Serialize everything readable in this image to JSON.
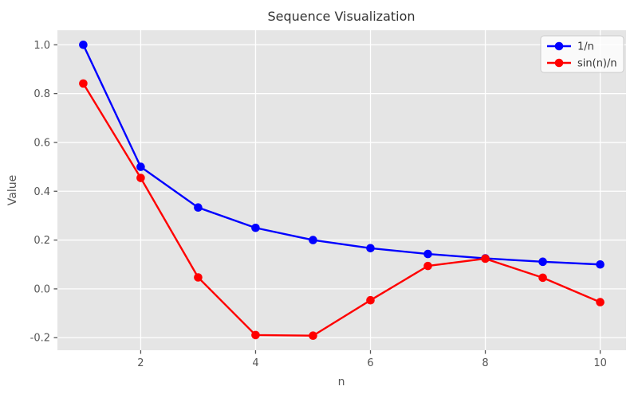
{
  "chart_data": {
    "type": "line",
    "title": "Sequence Visualization",
    "xlabel": "n",
    "ylabel": "Value",
    "x": [
      1,
      2,
      3,
      4,
      5,
      6,
      7,
      8,
      9,
      10
    ],
    "series": [
      {
        "name": "1/n",
        "color": "#0000ff",
        "values": [
          1.0,
          0.5,
          0.3333,
          0.25,
          0.2,
          0.1667,
          0.1429,
          0.125,
          0.1111,
          0.1
        ]
      },
      {
        "name": "sin(n)/n",
        "color": "#ff0000",
        "values": [
          0.8415,
          0.4546,
          0.047,
          -0.1892,
          -0.1918,
          -0.0466,
          0.0939,
          0.1237,
          0.0458,
          -0.0544
        ]
      }
    ],
    "x_ticks": [
      2,
      4,
      6,
      8,
      10
    ],
    "y_ticks": [
      -0.2,
      0.0,
      0.2,
      0.4,
      0.6,
      0.8,
      1.0
    ],
    "xlim": [
      0.55,
      10.45
    ],
    "ylim": [
      -0.2514,
      1.0596
    ],
    "grid": true,
    "legend_position": "upper right",
    "style": {
      "figure_bg": "#ffffff",
      "plot_bg": "#e5e5e5",
      "grid_color": "#ffffff",
      "tick_color": "#555555",
      "text_color": "#555555",
      "title_color": "#333333",
      "legend_bg": "rgba(255,255,255,0.8)",
      "legend_border": "#cccccc"
    }
  }
}
